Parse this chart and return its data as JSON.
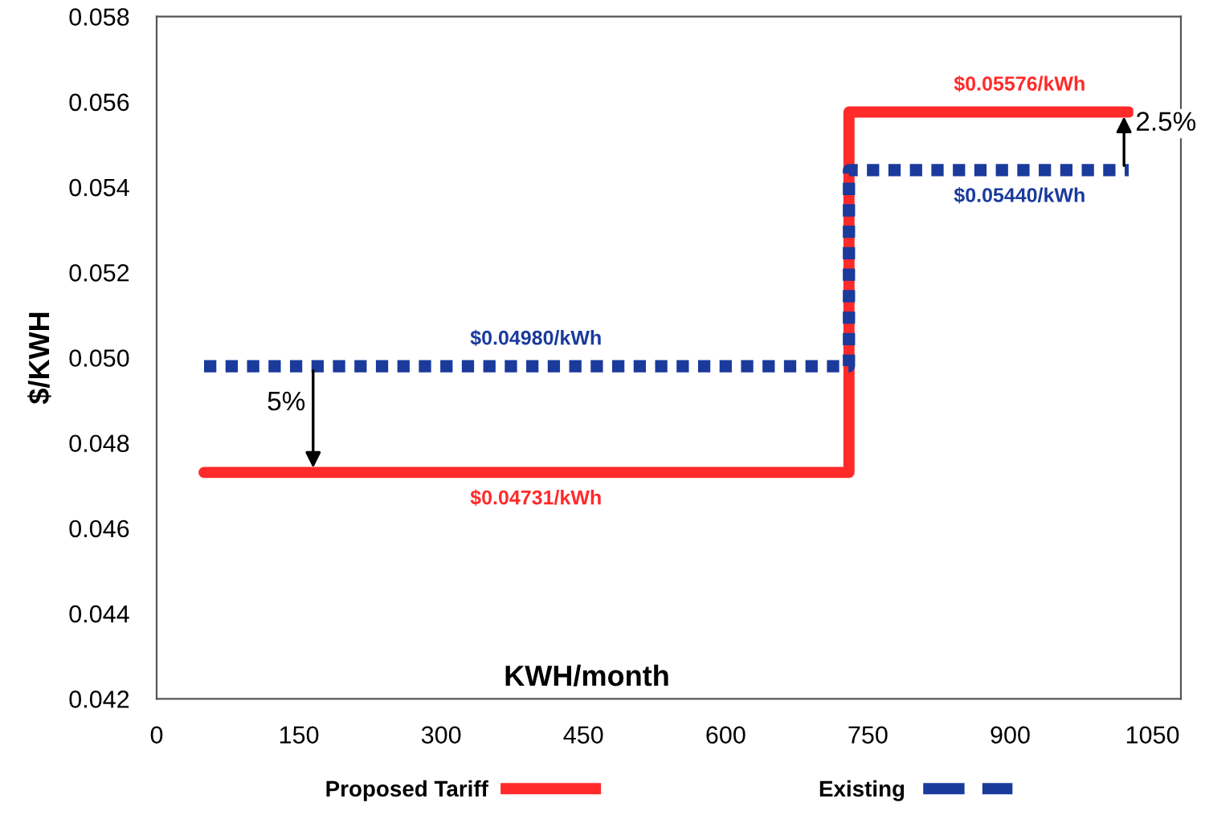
{
  "chart_data": {
    "type": "step",
    "xlabel": "KWH/month",
    "ylabel": "$/KWH",
    "xlim": [
      0,
      1080
    ],
    "xticks": [
      0,
      150,
      300,
      450,
      600,
      750,
      900,
      1050
    ],
    "ylim": [
      0.042,
      0.058
    ],
    "yticks": [
      {
        "value": 0.042,
        "label": "0.042"
      },
      {
        "value": 0.044,
        "label": "0.044"
      },
      {
        "value": 0.046,
        "label": "0.046"
      },
      {
        "value": 0.048,
        "label": "0.048"
      },
      {
        "value": 0.05,
        "label": "0.050"
      },
      {
        "value": 0.052,
        "label": "0.052"
      },
      {
        "value": 0.054,
        "label": "0.054"
      },
      {
        "value": 0.056,
        "label": "0.056"
      },
      {
        "value": 0.058,
        "label": "0.058"
      }
    ],
    "x": [
      50,
      400,
      730,
      910,
      1025
    ],
    "series": [
      {
        "name": "Proposed Tariff",
        "color": "#ff2a2a",
        "line_style": "solid",
        "values": [
          0.04731,
          0.04731,
          0.05576,
          0.05576,
          0.05576
        ],
        "value_labels": [
          null,
          "$0.04731/kWh",
          null,
          "$0.05576/kWh",
          null
        ]
      },
      {
        "name": "Existing",
        "color": "#1a3a9c",
        "line_style": "dotted",
        "values": [
          0.0498,
          0.0498,
          0.0544,
          0.0544,
          0.0544
        ],
        "value_labels": [
          null,
          "$0.04980/kWh",
          null,
          "$0.05440/kWh",
          null
        ]
      }
    ],
    "annotations": [
      {
        "text": "5%",
        "x": 165,
        "y": 0.04731
      },
      {
        "text": "2.5%",
        "x": 1020,
        "y": 0.05576
      }
    ],
    "grid": false,
    "legend": "bottom",
    "marker": "none"
  }
}
